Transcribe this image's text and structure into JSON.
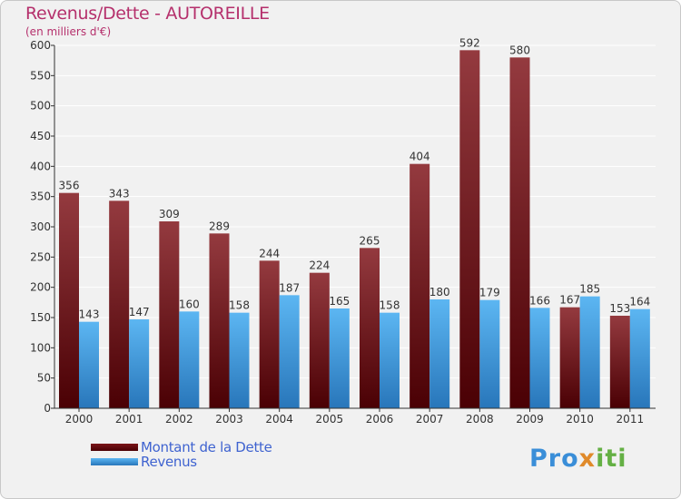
{
  "title": "Revenus/Dette - AUTOREILLE",
  "subtitle": "(en milliers d'€)",
  "colors": {
    "title": "#b5306c",
    "dette": "#7a1418",
    "revenus": "#3c98df",
    "legend_text": "#3f63d0"
  },
  "legend": [
    {
      "label": "Montant de la Dette"
    },
    {
      "label": "Revenus"
    }
  ],
  "logo": {
    "p1": "Pro",
    "p2": "x",
    "p3": "iti"
  },
  "chart_data": {
    "type": "bar",
    "title": "Revenus/Dette - AUTOREILLE",
    "subtitle": "(en milliers d'€)",
    "categories": [
      "2000",
      "2001",
      "2002",
      "2003",
      "2004",
      "2005",
      "2006",
      "2007",
      "2008",
      "2009",
      "2010",
      "2011"
    ],
    "series": [
      {
        "name": "Montant de la Dette",
        "values": [
          356,
          343,
          309,
          289,
          244,
          224,
          265,
          404,
          592,
          580,
          167,
          153
        ]
      },
      {
        "name": "Revenus",
        "values": [
          143,
          147,
          160,
          158,
          187,
          165,
          158,
          180,
          179,
          166,
          185,
          164
        ]
      }
    ],
    "ylim": [
      0,
      600
    ],
    "yticks": [
      0,
      50,
      100,
      150,
      200,
      250,
      300,
      350,
      400,
      450,
      500,
      550,
      600
    ],
    "grid": true,
    "legend_position": "bottom-left"
  }
}
